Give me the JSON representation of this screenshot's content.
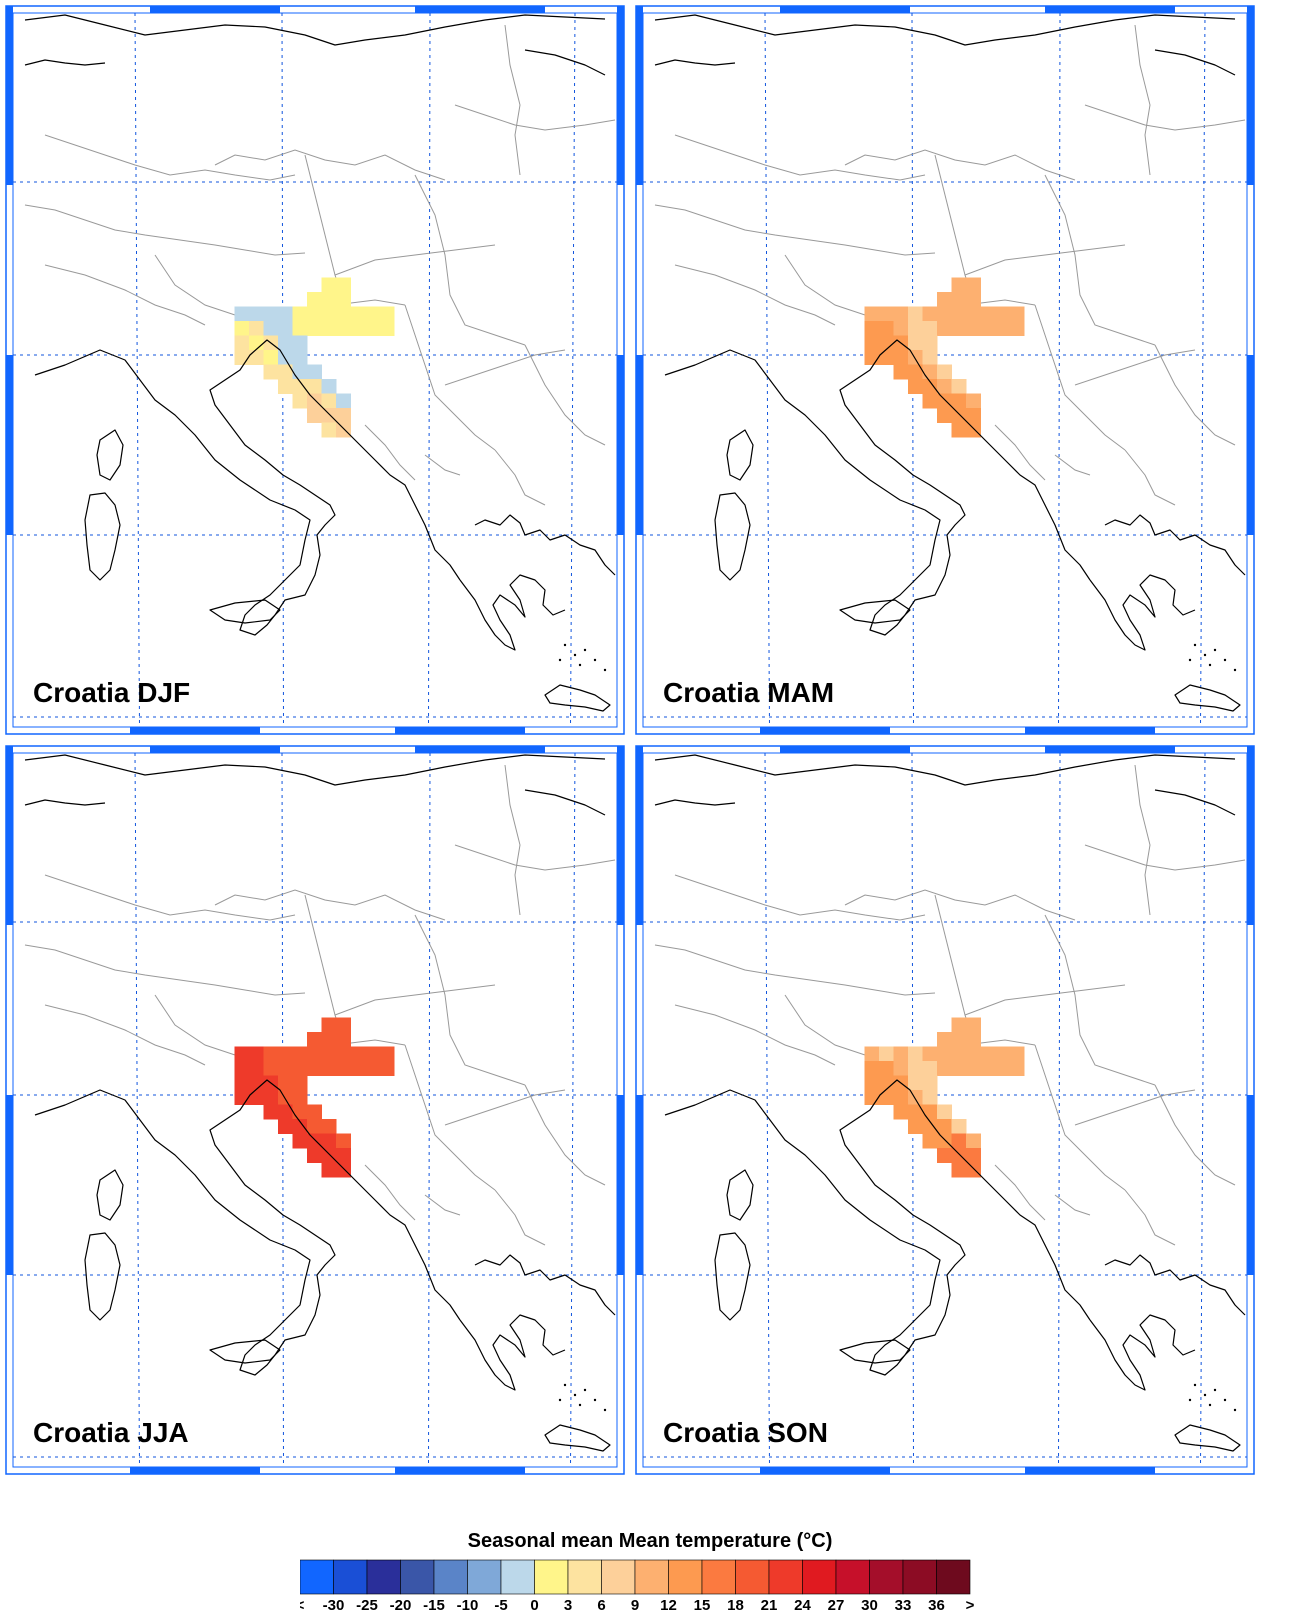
{
  "panels": [
    {
      "title": "Croatia DJF",
      "season": "DJF"
    },
    {
      "title": "Croatia MAM",
      "season": "MAM"
    },
    {
      "title": "Croatia JJA",
      "season": "JJA"
    },
    {
      "title": "Croatia SON",
      "season": "SON"
    }
  ],
  "colorbar": {
    "title": "Seasonal mean Mean temperature (°C)",
    "labels": [
      "<",
      "-30",
      "-25",
      "-20",
      "-15",
      "-10",
      "-5",
      "0",
      "3",
      "6",
      "9",
      "12",
      "15",
      "18",
      "21",
      "24",
      "27",
      "30",
      "33",
      "36",
      ">"
    ],
    "colors": [
      "#1166ff",
      "#1a4fd6",
      "#2a2f9a",
      "#3a56a8",
      "#5a84c8",
      "#7fa8d8",
      "#bcd8ea",
      "#fff58a",
      "#fde3a0",
      "#fdd09a",
      "#fdb070",
      "#fd9a50",
      "#fb7a40",
      "#f55a32",
      "#ee3a2a",
      "#e01a20",
      "#c6102a",
      "#a40e2a",
      "#8c0c24",
      "#6e0a1e"
    ]
  },
  "colors": {
    "frame_accent": "#1166ff",
    "grid_line": "#1155dd",
    "coastline": "#000000",
    "border": "#999999"
  }
}
